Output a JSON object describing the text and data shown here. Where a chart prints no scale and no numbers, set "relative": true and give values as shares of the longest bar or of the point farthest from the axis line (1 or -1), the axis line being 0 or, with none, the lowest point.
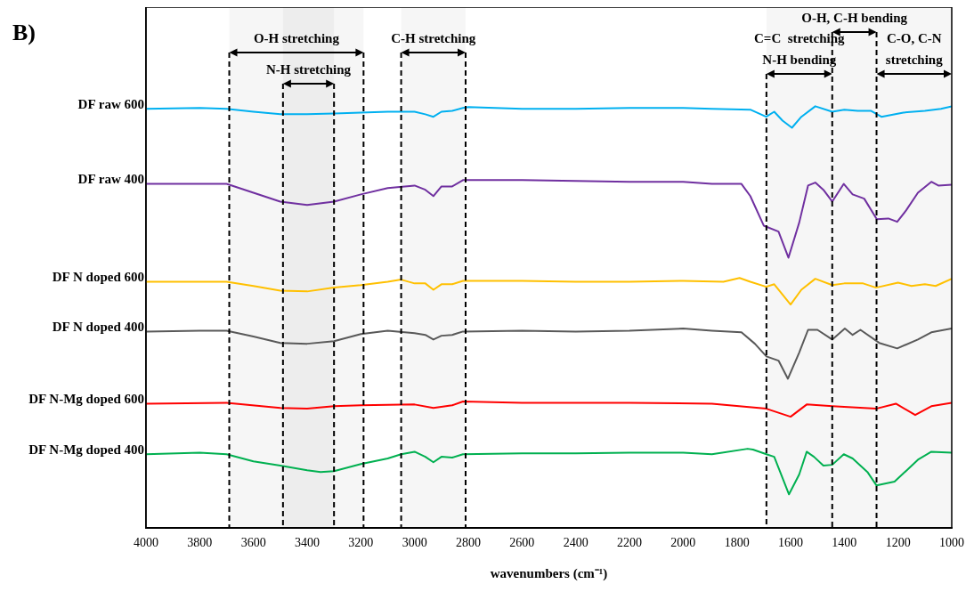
{
  "chart_data": {
    "type": "line",
    "xlabel": "wavenumbers (cm⁻¹)",
    "relative": true,
    "xlim": [
      4000,
      1000
    ],
    "xticks": [
      4000,
      3800,
      3600,
      3400,
      3200,
      3000,
      2800,
      2600,
      2400,
      2200,
      2000,
      1800,
      1600,
      1400,
      1200,
      1000
    ],
    "legend": false,
    "marker": "none",
    "series": [
      {
        "name": "DF raw 600",
        "color": "#00b0f0",
        "x": [
          4000,
          3800,
          3700,
          3600,
          3500,
          3400,
          3300,
          3200,
          3100,
          3000,
          2960,
          2930,
          2900,
          2860,
          2820,
          2800,
          2600,
          2400,
          2200,
          2000,
          1893,
          1750,
          1691,
          1661,
          1630,
          1595,
          1560,
          1508,
          1445,
          1400,
          1350,
          1300,
          1262,
          1180,
          1100,
          1040,
          1000
        ],
        "values": [
          0.994,
          0.996,
          0.994,
          0.987,
          0.981,
          0.981,
          0.983,
          0.985,
          0.987,
          0.987,
          0.981,
          0.975,
          0.987,
          0.989,
          0.996,
          0.998,
          0.994,
          0.994,
          0.996,
          0.996,
          0.994,
          0.992,
          0.975,
          0.987,
          0.966,
          0.949,
          0.975,
          1.0,
          0.987,
          0.992,
          0.989,
          0.989,
          0.975,
          0.985,
          0.989,
          0.994,
          1.0
        ]
      },
      {
        "name": "DF raw 400",
        "color": "#7030a0",
        "x": [
          4000,
          3800,
          3700,
          3600,
          3500,
          3400,
          3300,
          3200,
          3100,
          3000,
          2960,
          2930,
          2900,
          2860,
          2820,
          2600,
          2400,
          2200,
          2000,
          1893,
          1783,
          1750,
          1700,
          1645,
          1608,
          1568,
          1535,
          1508,
          1478,
          1445,
          1402,
          1369,
          1326,
          1279,
          1236,
          1203,
          1170,
          1126,
          1076,
          1050,
          1000
        ],
        "values": [
          0.816,
          0.816,
          0.816,
          0.795,
          0.774,
          0.766,
          0.774,
          0.791,
          0.806,
          0.812,
          0.802,
          0.787,
          0.81,
          0.81,
          0.825,
          0.825,
          0.823,
          0.821,
          0.821,
          0.816,
          0.816,
          0.787,
          0.717,
          0.703,
          0.641,
          0.724,
          0.812,
          0.819,
          0.802,
          0.774,
          0.816,
          0.791,
          0.781,
          0.732,
          0.734,
          0.726,
          0.753,
          0.795,
          0.821,
          0.812,
          0.814
        ]
      },
      {
        "name": "DF N doped 600",
        "color": "#ffc000",
        "x": [
          4000,
          3800,
          3700,
          3600,
          3500,
          3400,
          3300,
          3200,
          3100,
          3050,
          3000,
          2960,
          2930,
          2900,
          2860,
          2820,
          2600,
          2400,
          2200,
          2000,
          1850,
          1790,
          1750,
          1691,
          1661,
          1600,
          1560,
          1508,
          1445,
          1400,
          1330,
          1282,
          1200,
          1150,
          1100,
          1060,
          1000
        ],
        "values": [
          0.584,
          0.584,
          0.584,
          0.574,
          0.563,
          0.561,
          0.57,
          0.576,
          0.584,
          0.589,
          0.58,
          0.58,
          0.565,
          0.578,
          0.578,
          0.586,
          0.586,
          0.584,
          0.584,
          0.586,
          0.584,
          0.593,
          0.584,
          0.572,
          0.578,
          0.53,
          0.565,
          0.591,
          0.576,
          0.58,
          0.58,
          0.57,
          0.582,
          0.574,
          0.578,
          0.574,
          0.591
        ]
      },
      {
        "name": "DF N doped 400",
        "color": "#595959",
        "x": [
          4000,
          3800,
          3700,
          3600,
          3500,
          3400,
          3300,
          3200,
          3100,
          3000,
          2960,
          2930,
          2900,
          2860,
          2820,
          2600,
          2400,
          2200,
          2000,
          1893,
          1783,
          1733,
          1690,
          1645,
          1610,
          1568,
          1535,
          1500,
          1445,
          1398,
          1369,
          1340,
          1270,
          1203,
          1126,
          1076,
          1000
        ],
        "values": [
          0.466,
          0.468,
          0.468,
          0.454,
          0.439,
          0.437,
          0.443,
          0.46,
          0.468,
          0.462,
          0.458,
          0.447,
          0.456,
          0.458,
          0.466,
          0.468,
          0.466,
          0.468,
          0.473,
          0.468,
          0.464,
          0.437,
          0.407,
          0.397,
          0.354,
          0.416,
          0.47,
          0.47,
          0.447,
          0.473,
          0.458,
          0.47,
          0.439,
          0.426,
          0.447,
          0.464,
          0.473
        ]
      },
      {
        "name": "DF N-Mg doped 600",
        "color": "#ff0000",
        "x": [
          4000,
          3700,
          3500,
          3400,
          3300,
          3200,
          3000,
          2930,
          2860,
          2820,
          2600,
          2200,
          1893,
          1690,
          1600,
          1540,
          1445,
          1282,
          1208,
          1136,
          1076,
          1000
        ],
        "values": [
          0.295,
          0.297,
          0.285,
          0.283,
          0.289,
          0.291,
          0.293,
          0.285,
          0.291,
          0.3,
          0.297,
          0.297,
          0.295,
          0.283,
          0.264,
          0.293,
          0.289,
          0.283,
          0.295,
          0.268,
          0.289,
          0.297
        ]
      },
      {
        "name": "DF N-Mg doped 400",
        "color": "#00b050",
        "x": [
          4000,
          3800,
          3700,
          3600,
          3500,
          3400,
          3350,
          3300,
          3200,
          3100,
          3050,
          3000,
          2960,
          2930,
          2900,
          2860,
          2820,
          2600,
          2400,
          2200,
          2000,
          1893,
          1760,
          1740,
          1690,
          1661,
          1606,
          1568,
          1540,
          1513,
          1478,
          1445,
          1402,
          1369,
          1314,
          1280,
          1213,
          1126,
          1076,
          1000
        ],
        "values": [
          0.175,
          0.179,
          0.175,
          0.158,
          0.148,
          0.137,
          0.133,
          0.135,
          0.152,
          0.165,
          0.175,
          0.181,
          0.169,
          0.156,
          0.169,
          0.167,
          0.175,
          0.177,
          0.177,
          0.179,
          0.179,
          0.175,
          0.188,
          0.186,
          0.175,
          0.169,
          0.08,
          0.127,
          0.181,
          0.169,
          0.148,
          0.15,
          0.175,
          0.165,
          0.133,
          0.101,
          0.11,
          0.162,
          0.181,
          0.179
        ]
      }
    ],
    "ref_lines": [
      {
        "axis": "x",
        "value": 3690,
        "line_style": "dashed"
      },
      {
        "axis": "x",
        "value": 3490,
        "line_style": "dashed"
      },
      {
        "axis": "x",
        "value": 3300,
        "line_style": "dashed"
      },
      {
        "axis": "x",
        "value": 3190,
        "line_style": "dashed"
      },
      {
        "axis": "x",
        "value": 3050,
        "line_style": "dashed"
      },
      {
        "axis": "x",
        "value": 2810,
        "line_style": "dashed"
      },
      {
        "axis": "x",
        "value": 1690,
        "line_style": "dashed"
      },
      {
        "axis": "x",
        "value": 1445,
        "line_style": "dashed"
      },
      {
        "axis": "x",
        "value": 1280,
        "line_style": "dashed"
      }
    ],
    "bands": [
      {
        "axis": "x",
        "from": 3690,
        "to": 3190,
        "label": "O-H stretching"
      },
      {
        "axis": "x",
        "from": 3490,
        "to": 3300,
        "label": "N-H stretching"
      },
      {
        "axis": "x",
        "from": 3050,
        "to": 2810,
        "label": "C-H stretching"
      },
      {
        "axis": "x",
        "from": 1690,
        "to": 1445,
        "label": "C=C  stretching\nN-H bending"
      },
      {
        "axis": "x",
        "from": 1445,
        "to": 1280,
        "label": "O-H, C-H bending"
      },
      {
        "axis": "x",
        "from": 1280,
        "to": 1000,
        "label": "C-O, C-N\nstretching"
      }
    ],
    "annotations": [
      "B)"
    ]
  }
}
